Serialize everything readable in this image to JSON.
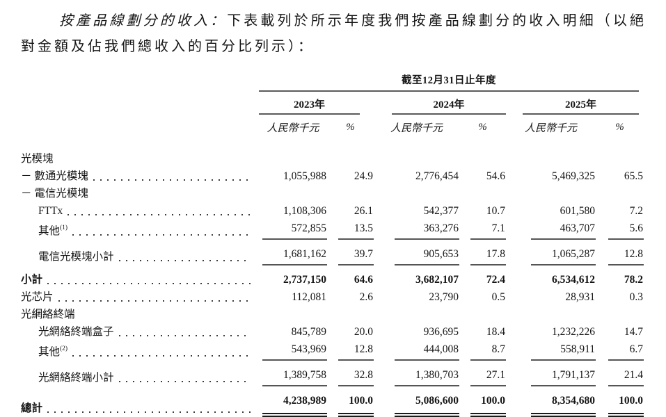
{
  "intro": {
    "lead": "按產品線劃分的收入：",
    "body": "下表載列於所示年度我們按產品線劃分的收入明細（以絕對金額及佔我們總收入的百分比列示）："
  },
  "table": {
    "period_header": "截至12月31日止年度",
    "years": [
      "2023年",
      "2024年",
      "2025年"
    ],
    "unit_label": "人民幣千元",
    "percent_label": "%",
    "rows": [
      {
        "label": "光模塊",
        "sup": "",
        "indent": 0,
        "dots": false,
        "bold": false,
        "underline": false,
        "double_underline": false,
        "spaced": false,
        "values": [
          "",
          "",
          "",
          "",
          "",
          ""
        ]
      },
      {
        "label": "－ 數通光模塊",
        "sup": "",
        "indent": 0,
        "dots": true,
        "bold": false,
        "underline": false,
        "double_underline": false,
        "spaced": false,
        "values": [
          "1,055,988",
          "24.9",
          "2,776,454",
          "54.6",
          "5,469,325",
          "65.5"
        ]
      },
      {
        "label": "－ 電信光模塊",
        "sup": "",
        "indent": 0,
        "dots": false,
        "bold": false,
        "underline": false,
        "double_underline": false,
        "spaced": false,
        "values": [
          "",
          "",
          "",
          "",
          "",
          ""
        ]
      },
      {
        "label": "FTTx",
        "sup": "",
        "indent": 1,
        "dots": true,
        "bold": false,
        "underline": false,
        "double_underline": false,
        "spaced": false,
        "values": [
          "1,108,306",
          "26.1",
          "542,377",
          "10.7",
          "601,580",
          "7.2"
        ]
      },
      {
        "label": "其他",
        "sup": "(1)",
        "indent": 1,
        "dots": true,
        "bold": false,
        "underline": true,
        "double_underline": false,
        "spaced": false,
        "values": [
          "572,855",
          "13.5",
          "363,276",
          "7.1",
          "463,707",
          "5.6"
        ]
      },
      {
        "label": "電信光模塊小計",
        "sup": "",
        "indent": 1,
        "dots": true,
        "bold": false,
        "underline": true,
        "double_underline": false,
        "spaced": true,
        "values": [
          "1,681,162",
          "39.7",
          "905,653",
          "17.8",
          "1,065,287",
          "12.8"
        ]
      },
      {
        "label": "小計",
        "sup": "",
        "indent": 0,
        "dots": true,
        "bold": true,
        "underline": false,
        "double_underline": false,
        "spaced": true,
        "values": [
          "2,737,150",
          "64.6",
          "3,682,107",
          "72.4",
          "6,534,612",
          "78.2"
        ]
      },
      {
        "label": "光芯片",
        "sup": "",
        "indent": 0,
        "dots": true,
        "bold": false,
        "underline": false,
        "double_underline": false,
        "spaced": false,
        "values": [
          "112,081",
          "2.6",
          "23,790",
          "0.5",
          "28,931",
          "0.3"
        ]
      },
      {
        "label": "光網絡終端",
        "sup": "",
        "indent": 0,
        "dots": false,
        "bold": false,
        "underline": false,
        "double_underline": false,
        "spaced": false,
        "values": [
          "",
          "",
          "",
          "",
          "",
          ""
        ]
      },
      {
        "label": "光網絡終端盒子",
        "sup": "",
        "indent": 1,
        "dots": true,
        "bold": false,
        "underline": false,
        "double_underline": false,
        "spaced": false,
        "values": [
          "845,789",
          "20.0",
          "936,695",
          "18.4",
          "1,232,226",
          "14.7"
        ]
      },
      {
        "label": "其他",
        "sup": "(2)",
        "indent": 1,
        "dots": true,
        "bold": false,
        "underline": true,
        "double_underline": false,
        "spaced": false,
        "values": [
          "543,969",
          "12.8",
          "444,008",
          "8.7",
          "558,911",
          "6.7"
        ]
      },
      {
        "label": "光網絡終端小計",
        "sup": "",
        "indent": 1,
        "dots": true,
        "bold": false,
        "underline": true,
        "double_underline": false,
        "spaced": true,
        "values": [
          "1,389,758",
          "32.8",
          "1,380,703",
          "27.1",
          "1,791,137",
          "21.4"
        ]
      },
      {
        "label": "總計",
        "sup": "",
        "indent": 0,
        "dots": true,
        "bold": true,
        "underline": false,
        "double_underline": true,
        "spaced": true,
        "values": [
          "4,238,989",
          "100.0",
          "5,086,600",
          "100.0",
          "8,354,680",
          "100.0"
        ]
      }
    ]
  }
}
